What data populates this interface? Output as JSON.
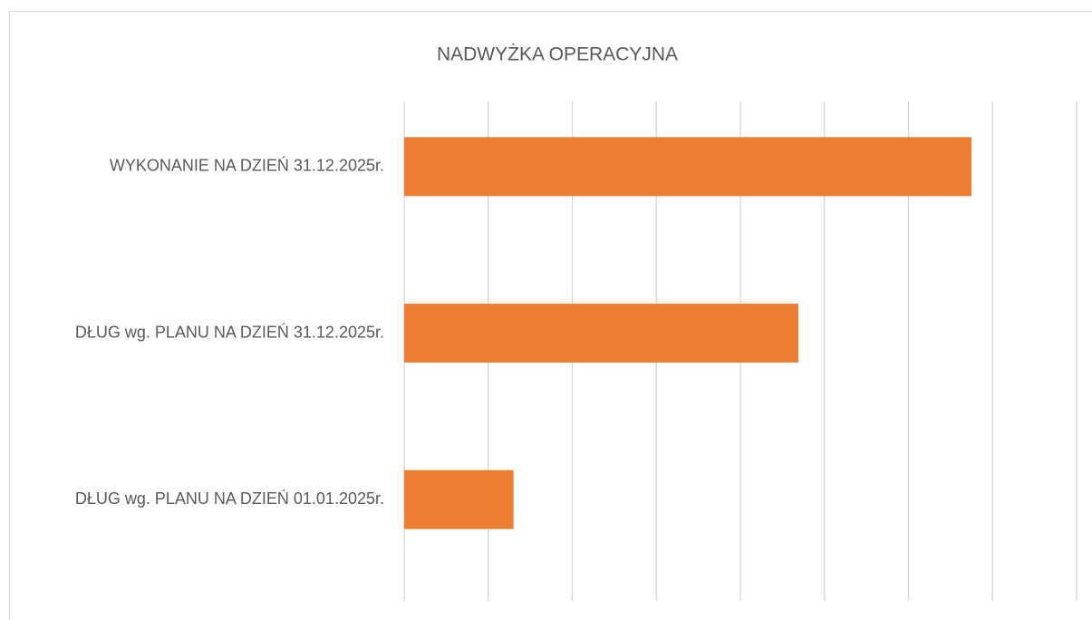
{
  "chart_data": {
    "type": "barh",
    "title": "NADWYŻKA OPERACYJNA",
    "categories": [
      "WYKONANIE NA DZIEŃ 31.12.2025r.",
      "DŁUG wg. PLANU NA DZIEŃ 31.12.2025r.",
      "DŁUG wg. PLANU NA DZIEŃ 01.01.2025r."
    ],
    "values": [
      6.75,
      4.69,
      1.3
    ],
    "color": "#ed7d31",
    "xlim": [
      0,
      8
    ],
    "xticks": [
      0,
      1,
      2,
      3,
      4,
      5,
      6,
      7,
      8
    ],
    "grid": true
  }
}
